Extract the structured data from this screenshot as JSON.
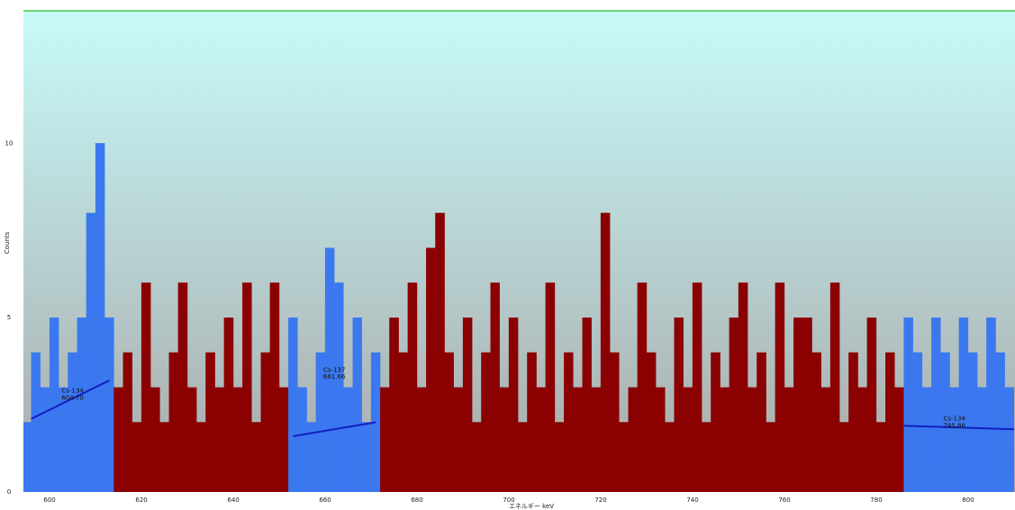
{
  "chart_data": {
    "type": "histogram",
    "ylabel": "Counts",
    "xlabel": "エネルギー keV",
    "xlim": [
      594.3,
      810.2
    ],
    "ylim": [
      0,
      13.8
    ],
    "xticks": [
      600,
      620,
      640,
      660,
      680,
      700,
      720,
      740,
      760,
      780,
      800
    ],
    "yticks": [
      0,
      5,
      10
    ],
    "grid": true,
    "color": "#8b0000",
    "bins": [
      594,
      596,
      598,
      600,
      602,
      604,
      606,
      608,
      610,
      612,
      614,
      616,
      618,
      620,
      622,
      624,
      626,
      628,
      630,
      632,
      634,
      636,
      638,
      640,
      642,
      644,
      646,
      648,
      650,
      652,
      654,
      656,
      658,
      660,
      662,
      664,
      666,
      668,
      670,
      672,
      674,
      676,
      678,
      680,
      682,
      684,
      686,
      688,
      690,
      692,
      694,
      696,
      698,
      700,
      702,
      704,
      706,
      708,
      710,
      712,
      714,
      716,
      718,
      720,
      722,
      724,
      726,
      728,
      730,
      732,
      734,
      736,
      738,
      740,
      742,
      744,
      746,
      748,
      750,
      752,
      754,
      756,
      758,
      760,
      762,
      764,
      766,
      768,
      770,
      772,
      774,
      776,
      778,
      780,
      782,
      784,
      786,
      788,
      790,
      792,
      794,
      796,
      798,
      800,
      802,
      804,
      806,
      808,
      810
    ],
    "counts": [
      2,
      4,
      3,
      5,
      3,
      4,
      5,
      8,
      10,
      5,
      3,
      4,
      2,
      6,
      3,
      2,
      4,
      6,
      3,
      2,
      4,
      3,
      5,
      3,
      6,
      2,
      4,
      6,
      3,
      5,
      3,
      2,
      4,
      7,
      6,
      3,
      5,
      2,
      4,
      3,
      5,
      4,
      6,
      3,
      7,
      8,
      4,
      3,
      5,
      2,
      4,
      6,
      3,
      5,
      2,
      4,
      3,
      6,
      2,
      4,
      3,
      5,
      3,
      8,
      4,
      2,
      3,
      6,
      4,
      3,
      2,
      5,
      3,
      6,
      2,
      4,
      3,
      5,
      6,
      3,
      4,
      2,
      6,
      3,
      5,
      5,
      4,
      3,
      6,
      2,
      4,
      3,
      5,
      2,
      4,
      3,
      5,
      4,
      3,
      5,
      4,
      3,
      5,
      4,
      3,
      5,
      4,
      3
    ],
    "regions": [
      {
        "start": 594,
        "end": 614,
        "color": "#3b78f0"
      },
      {
        "start": 652,
        "end": 672,
        "color": "#3b78f0"
      },
      {
        "start": 786,
        "end": 810,
        "color": "#3b78f0"
      }
    ],
    "baselines": [
      {
        "x": [
          596,
          613
        ],
        "y": [
          2.1,
          3.2
        ]
      },
      {
        "x": [
          653,
          671
        ],
        "y": [
          1.6,
          2.0
        ]
      },
      {
        "x": [
          786,
          810
        ],
        "y": [
          1.9,
          1.8
        ]
      }
    ],
    "annotations": [
      {
        "text": "Cs-134",
        "x": 605,
        "y": 2.9
      },
      {
        "text": "604.70",
        "x": 605,
        "y": 2.7
      },
      {
        "text": "Cs-137",
        "x": 662,
        "y": 3.5
      },
      {
        "text": "661.66",
        "x": 662,
        "y": 3.3
      },
      {
        "text": "Cs-134",
        "x": 797,
        "y": 2.1
      },
      {
        "text": "795.86",
        "x": 797,
        "y": 1.9
      }
    ]
  }
}
